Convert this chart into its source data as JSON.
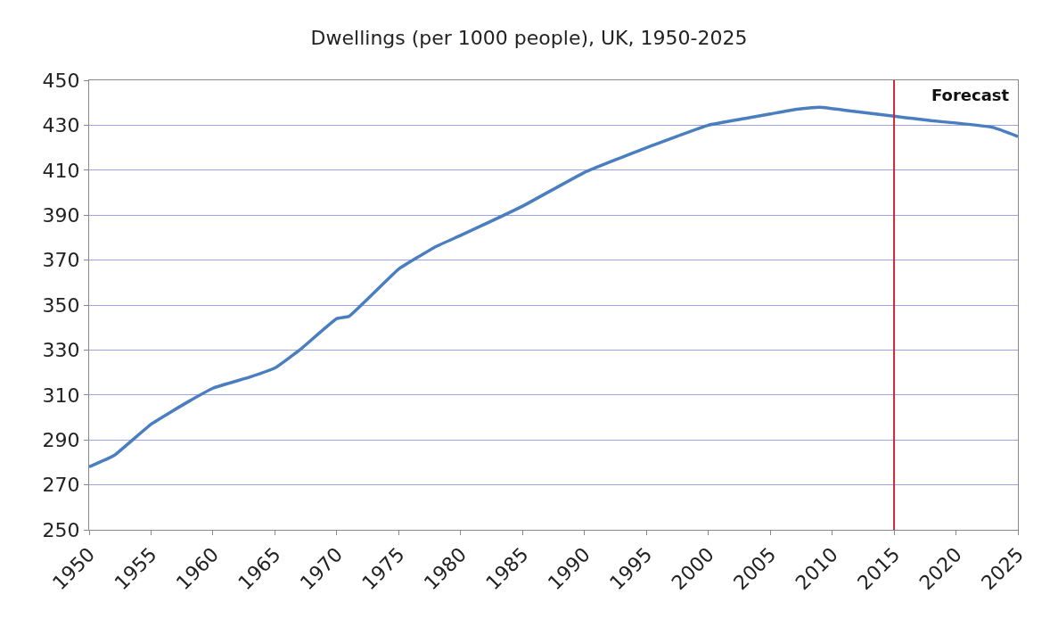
{
  "chart_data": {
    "type": "line",
    "title": "Dwellings (per 1000 people), UK, 1950-2025",
    "x": [
      1950,
      1952,
      1955,
      1958,
      1960,
      1963,
      1965,
      1967,
      1970,
      1971,
      1975,
      1978,
      1980,
      1985,
      1990,
      1995,
      2000,
      2003,
      2005,
      2007,
      2009,
      2012,
      2015,
      2018,
      2020,
      2023,
      2025
    ],
    "series": [
      {
        "color": "#4a7ebf",
        "values": [
          278,
          283,
          297,
          307,
          313,
          318,
          322,
          330,
          344,
          345,
          366,
          376,
          381,
          394,
          409,
          420,
          430,
          433,
          435,
          437,
          438,
          436,
          434,
          432,
          431,
          429,
          425
        ]
      }
    ],
    "xlim": [
      1950,
      2025
    ],
    "xticks": [
      1950,
      1955,
      1960,
      1965,
      1970,
      1975,
      1980,
      1985,
      1990,
      1995,
      2000,
      2005,
      2010,
      2015,
      2020,
      2025
    ],
    "ylim": [
      250,
      450
    ],
    "yticks": [
      250,
      270,
      290,
      310,
      330,
      350,
      370,
      390,
      410,
      430,
      450
    ],
    "grid": "y",
    "marker": "none",
    "line_style": "solid",
    "ref_lines": [
      {
        "axis": "x",
        "value": 2015,
        "label": "Forecast",
        "color": "#c8283c"
      }
    ]
  }
}
